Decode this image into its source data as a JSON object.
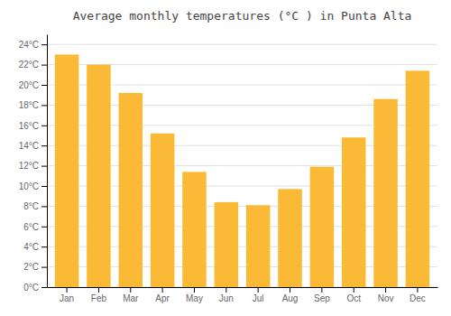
{
  "chart_data": {
    "type": "bar",
    "title": "Average monthly temperatures (°C ) in Punta Alta",
    "categories": [
      "Jan",
      "Feb",
      "Mar",
      "Apr",
      "May",
      "Jun",
      "Jul",
      "Aug",
      "Sep",
      "Oct",
      "Nov",
      "Dec"
    ],
    "values": [
      23.0,
      22.0,
      19.2,
      15.2,
      11.4,
      8.4,
      8.1,
      9.7,
      11.9,
      14.8,
      18.6,
      21.4
    ],
    "color": "#FBBA35",
    "ylim": [
      0,
      25
    ],
    "yticks": [
      {
        "value": 0,
        "label": "0°C"
      },
      {
        "value": 2,
        "label": "2°C"
      },
      {
        "value": 4,
        "label": "4°C"
      },
      {
        "value": 6,
        "label": "6°C"
      },
      {
        "value": 8,
        "label": "8°C"
      },
      {
        "value": 10,
        "label": "10°C"
      },
      {
        "value": 12,
        "label": "12°C"
      },
      {
        "value": 14,
        "label": "14°C"
      },
      {
        "value": 16,
        "label": "16°C"
      },
      {
        "value": 18,
        "label": "18°C"
      },
      {
        "value": 20,
        "label": "20°C"
      },
      {
        "value": 22,
        "label": "22°C"
      },
      {
        "value": 24,
        "label": "24°C"
      }
    ],
    "grid": true
  }
}
